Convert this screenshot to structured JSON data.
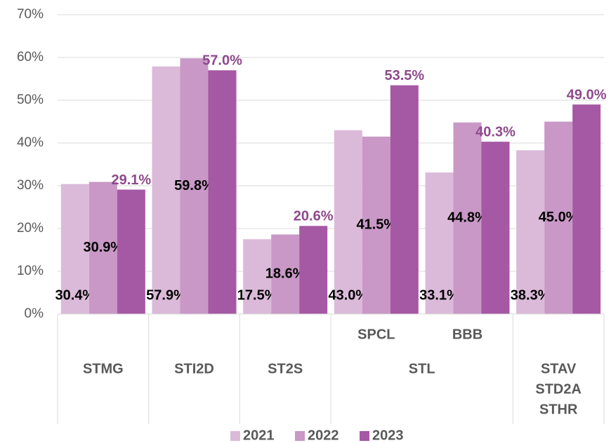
{
  "chart_data": {
    "type": "bar",
    "categories": [
      null,
      null,
      null,
      "SPCL",
      "BBB",
      null
    ],
    "groups": [
      {
        "label": "STMG",
        "span": 1
      },
      {
        "label": "STI2D",
        "span": 1
      },
      {
        "label": "ST2S",
        "span": 1
      },
      {
        "label": "STL",
        "span": 2
      },
      {
        "label": [
          "STAV",
          "STD2A",
          "STHR"
        ],
        "span": 1
      }
    ],
    "series": [
      {
        "name": "2021",
        "color": "#dbbad9",
        "label_color": "#000000",
        "label_position": "inside_base",
        "values": [
          30.4,
          57.9,
          17.5,
          43.0,
          33.1,
          38.3
        ],
        "value_labels": [
          "30.4%",
          "57.9%",
          "17.5%",
          "43.0%",
          "33.1%",
          "38.3%"
        ]
      },
      {
        "name": "2022",
        "color": "#c998c6",
        "label_color": "#000000",
        "label_position": "center",
        "values": [
          30.9,
          59.8,
          18.6,
          41.5,
          44.8,
          45.0
        ],
        "value_labels": [
          "30.9%",
          "59.8%",
          "18.6%",
          "41.5%",
          "44.8%",
          "45.0%"
        ]
      },
      {
        "name": "2023",
        "color": "#a558a3",
        "label_color": "#8e4a8c",
        "label_position": "outside_end",
        "values": [
          29.1,
          57.0,
          20.6,
          53.5,
          40.3,
          49.0
        ],
        "value_labels": [
          "29.1%",
          "57.0%",
          "20.6%",
          "53.5%",
          "40.3%",
          "49.0%"
        ]
      }
    ],
    "ylim": [
      0,
      70
    ],
    "yticks": [
      {
        "value": 0,
        "label": "0%"
      },
      {
        "value": 10,
        "label": "10%"
      },
      {
        "value": 20,
        "label": "20%"
      },
      {
        "value": 30,
        "label": "30%"
      },
      {
        "value": 40,
        "label": "40%"
      },
      {
        "value": 50,
        "label": "50%"
      },
      {
        "value": 60,
        "label": "60%"
      },
      {
        "value": 70,
        "label": "70%"
      }
    ],
    "grid": true,
    "legend": "bottom"
  }
}
